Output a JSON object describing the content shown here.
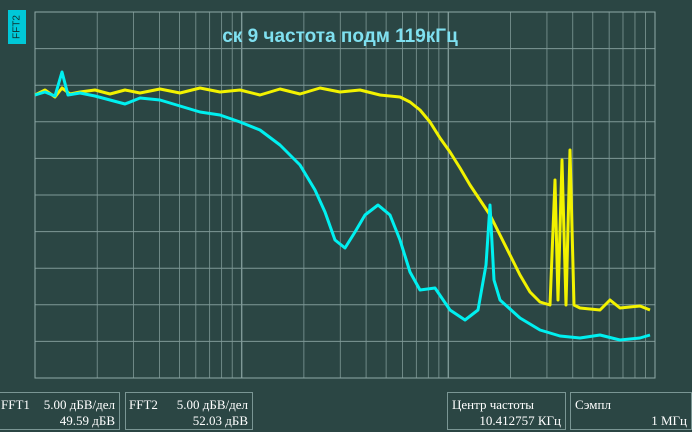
{
  "title": "ск 9 частота подм 119кГц",
  "side_label": "FFT2",
  "readouts": [
    {
      "label": "FFT1",
      "scale": "5.00 дБВ/дел",
      "value": "49.59 дБВ"
    },
    {
      "label": "FFT2",
      "scale": "5.00 дБВ/дел",
      "value": "52.03 дБВ"
    }
  ],
  "center": {
    "label": "Центр частоты",
    "value": "10.412757 КГц"
  },
  "sample": {
    "label": "Сэмпл",
    "value": "1 МГц"
  }
}
